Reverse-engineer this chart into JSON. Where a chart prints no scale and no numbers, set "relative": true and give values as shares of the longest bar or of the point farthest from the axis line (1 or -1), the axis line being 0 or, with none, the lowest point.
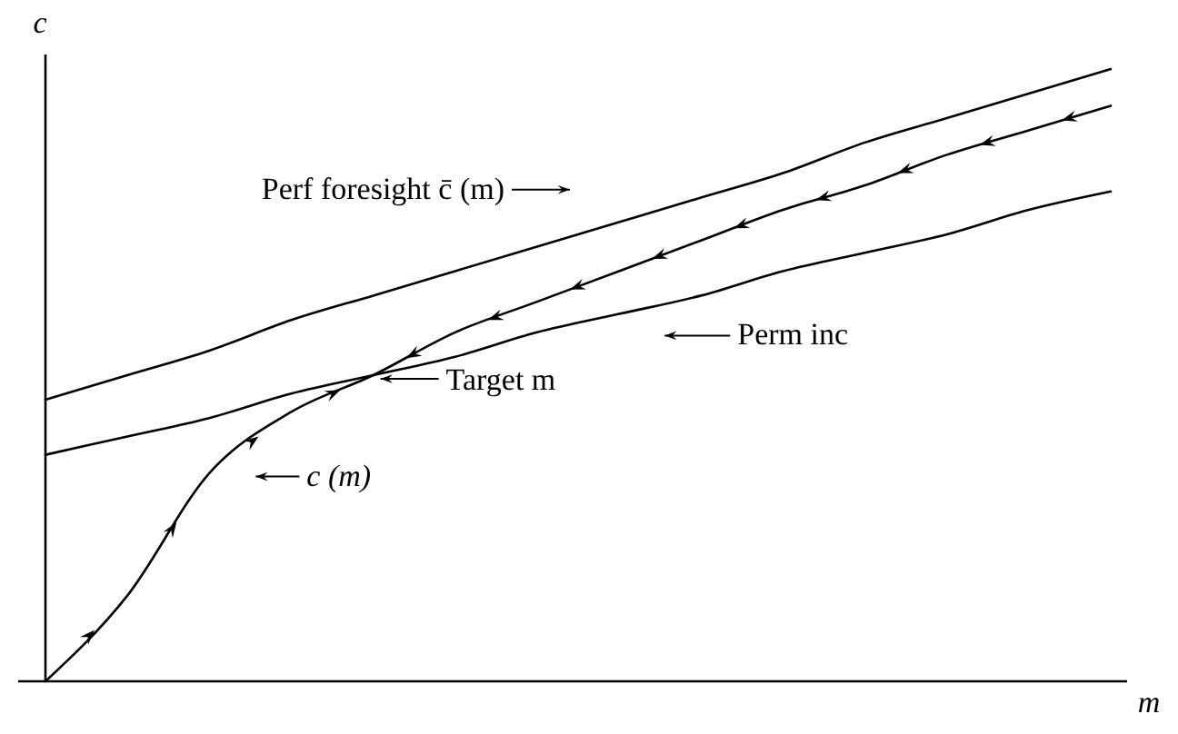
{
  "chart_data": {
    "type": "line",
    "relative": true,
    "xlabel": "m",
    "ylabel": "c",
    "categories": [
      null,
      null,
      null,
      null,
      null,
      null,
      null,
      null,
      null,
      null,
      null,
      null,
      null,
      null
    ],
    "series": [
      {
        "name": "Perf foresight c̄ (m)",
        "color": "#000000",
        "values": [
          0.46,
          0.5,
          0.54,
          0.59,
          0.63,
          0.67,
          0.71,
          0.75,
          0.79,
          0.83,
          0.88,
          0.92,
          0.96,
          1
        ]
      },
      {
        "name": "c (m)",
        "color": "#000000",
        "values": [
          0,
          0.14,
          0.34,
          0.44,
          0.5,
          0.57,
          0.62,
          0.67,
          0.72,
          0.77,
          0.81,
          0.86,
          0.9,
          0.94
        ]
      },
      {
        "name": "Perm inc",
        "color": "#000000",
        "values": [
          0.37,
          0.4,
          0.43,
          0.47,
          0.5,
          0.53,
          0.57,
          0.6,
          0.63,
          0.67,
          0.7,
          0.73,
          0.77,
          0.8
        ]
      }
    ],
    "annotations": [
      "Target m"
    ],
    "legend": "center",
    "marker": "none",
    "line_style": "solid"
  }
}
